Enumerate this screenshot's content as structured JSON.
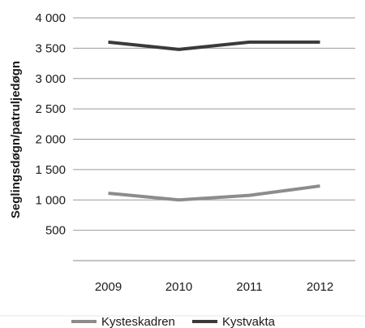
{
  "chart_data": {
    "type": "line",
    "categories": [
      "2009",
      "2010",
      "2011",
      "2012"
    ],
    "series": [
      {
        "name": "Kysteskadren",
        "values": [
          1110,
          1000,
          1075,
          1230
        ],
        "color": "#8c8c8c"
      },
      {
        "name": "Kystvakta",
        "values": [
          3600,
          3480,
          3600,
          3600
        ],
        "color": "#3a3a3a"
      }
    ],
    "ylabel": "Seglingsdøgn/patruljedøgn",
    "xlabel": "",
    "ylim": [
      0,
      4000
    ],
    "yticks": [
      0,
      500,
      1000,
      1500,
      2000,
      2500,
      3000,
      3500,
      4000
    ],
    "ytick_labels": [
      "",
      "500",
      "1 000",
      "1 500",
      "2 000",
      "2 500",
      "3 000",
      "3 500",
      "4 000"
    ],
    "grid": true,
    "legend": "bottom"
  }
}
